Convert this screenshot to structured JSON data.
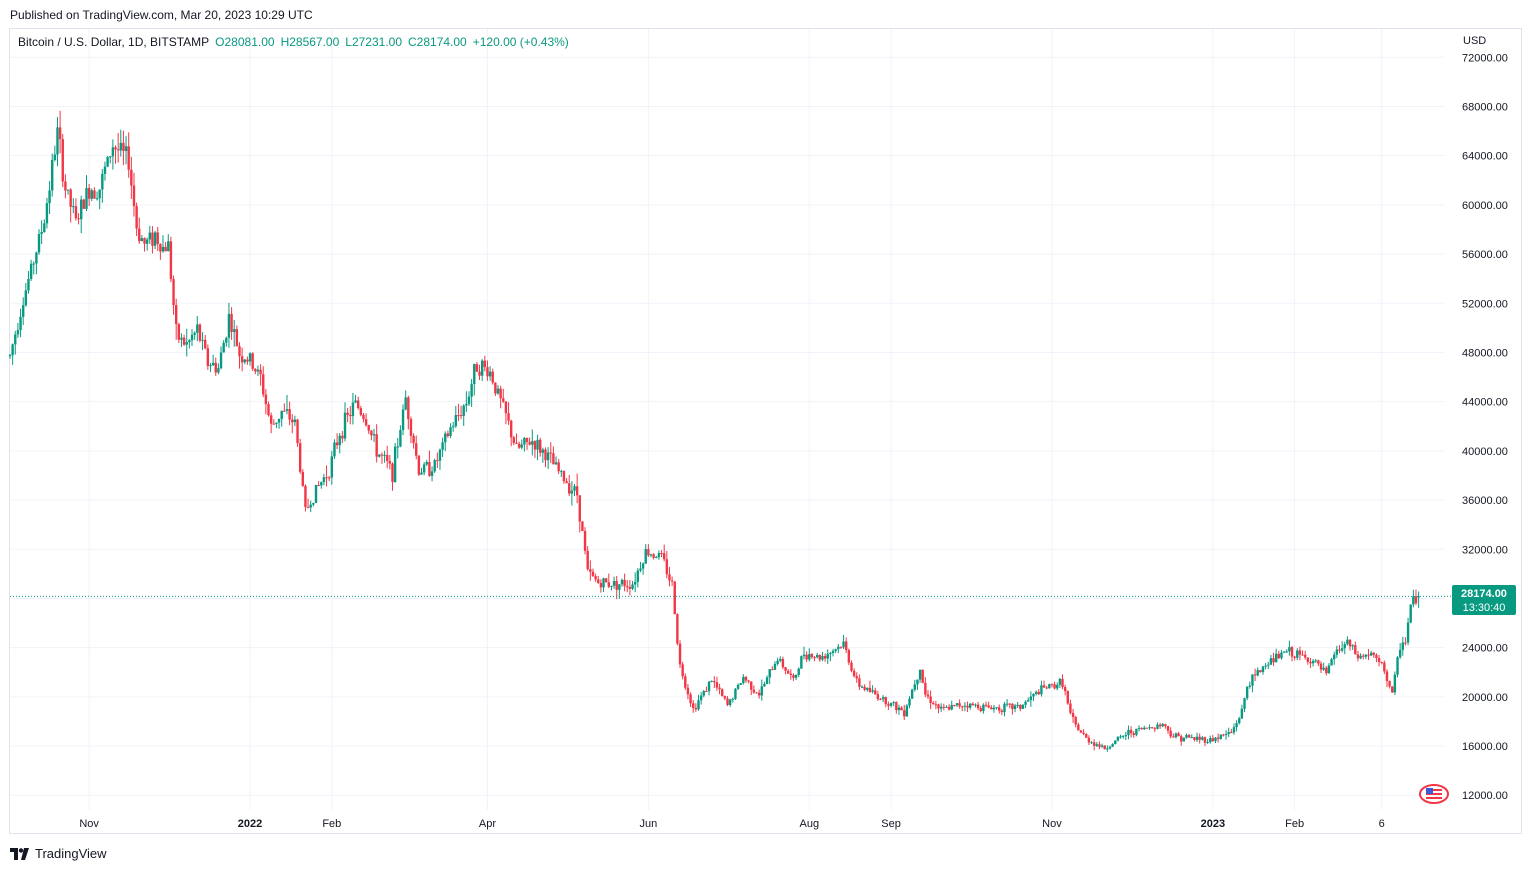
{
  "header": {
    "published": "Published on TradingView.com, Mar 20, 2023 10:29 UTC"
  },
  "legend": {
    "symbol": "Bitcoin / U.S. Dollar, 1D, BITSTAMP",
    "open": "O28081.00",
    "high": "H28567.00",
    "low": "L27231.00",
    "close": "C28174.00",
    "change": "+120.00 (+0.43%)"
  },
  "axis": {
    "currency": "USD"
  },
  "last_price": {
    "price": "28174.00",
    "countdown": "13:30:40"
  },
  "footer": {
    "brand": "TradingView"
  },
  "colors": {
    "up": "#089981",
    "down": "#f23645",
    "grid": "#f0f3fa",
    "text": "#131722"
  },
  "icons": {
    "logo": "tradingview-logo-icon",
    "badge": "flag-badge-icon"
  },
  "chart_data": {
    "type": "candlestick",
    "title": "Bitcoin / U.S. Dollar, 1D, BITSTAMP",
    "y_axis": {
      "side": "right",
      "min": 10800,
      "max": 74300,
      "ticks": [
        12000,
        16000,
        20000,
        24000,
        28000,
        32000,
        36000,
        40000,
        44000,
        48000,
        52000,
        56000,
        60000,
        64000,
        68000,
        72000
      ],
      "tick_labels": [
        "12000.00",
        "16000.00",
        "20000.00",
        "24000.00",
        "28000.00",
        "32000.00",
        "36000.00",
        "40000.00",
        "44000.00",
        "48000.00",
        "52000.00",
        "56000.00",
        "60000.00",
        "64000.00",
        "68000.00",
        "72000.00"
      ]
    },
    "x_axis": {
      "start": "2021-10-02",
      "end": "2023-03-20",
      "right_margin_days": 10,
      "ticks": [
        {
          "date": "2021-11-01",
          "label": "Nov",
          "bold": false
        },
        {
          "date": "2022-01-01",
          "label": "2022",
          "bold": true
        },
        {
          "date": "2022-02-01",
          "label": "Feb",
          "bold": false
        },
        {
          "date": "2022-04-01",
          "label": "Apr",
          "bold": false
        },
        {
          "date": "2022-06-01",
          "label": "Jun",
          "bold": false
        },
        {
          "date": "2022-08-01",
          "label": "Aug",
          "bold": false
        },
        {
          "date": "2022-09-01",
          "label": "Sep",
          "bold": false
        },
        {
          "date": "2022-11-01",
          "label": "Nov",
          "bold": false
        },
        {
          "date": "2023-01-01",
          "label": "2023",
          "bold": true
        },
        {
          "date": "2023-02-01",
          "label": "Feb",
          "bold": false
        },
        {
          "date": "2023-03-06",
          "label": "6",
          "bold": false
        }
      ]
    },
    "grid": true,
    "last_price_line": 28174,
    "closes": [
      {
        "date": "2021-10-02",
        "close": 47700
      },
      {
        "date": "2021-10-06",
        "close": 51500
      },
      {
        "date": "2021-10-10",
        "close": 54700
      },
      {
        "date": "2021-10-15",
        "close": 58800
      },
      {
        "date": "2021-10-20",
        "close": 65900
      },
      {
        "date": "2021-10-23",
        "close": 61300
      },
      {
        "date": "2021-10-27",
        "close": 58600
      },
      {
        "date": "2021-11-01",
        "close": 61300
      },
      {
        "date": "2021-11-05",
        "close": 61400
      },
      {
        "date": "2021-11-10",
        "close": 64900
      },
      {
        "date": "2021-11-13",
        "close": 64200
      },
      {
        "date": "2021-11-16",
        "close": 63600
      },
      {
        "date": "2021-11-19",
        "close": 58200
      },
      {
        "date": "2021-11-22",
        "close": 56800
      },
      {
        "date": "2021-11-26",
        "close": 57600
      },
      {
        "date": "2021-11-29",
        "close": 56500
      },
      {
        "date": "2021-12-01",
        "close": 56800
      },
      {
        "date": "2021-12-04",
        "close": 49400
      },
      {
        "date": "2021-12-08",
        "close": 48600
      },
      {
        "date": "2021-12-12",
        "close": 49800
      },
      {
        "date": "2021-12-16",
        "close": 47200
      },
      {
        "date": "2021-12-20",
        "close": 46700
      },
      {
        "date": "2021-12-24",
        "close": 50900
      },
      {
        "date": "2021-12-28",
        "close": 47900
      },
      {
        "date": "2022-01-01",
        "close": 47300
      },
      {
        "date": "2022-01-05",
        "close": 45900
      },
      {
        "date": "2022-01-09",
        "close": 41900
      },
      {
        "date": "2022-01-13",
        "close": 43200
      },
      {
        "date": "2022-01-18",
        "close": 42300
      },
      {
        "date": "2022-01-22",
        "close": 35100
      },
      {
        "date": "2022-01-26",
        "close": 36800
      },
      {
        "date": "2022-01-31",
        "close": 38500
      },
      {
        "date": "2022-02-04",
        "close": 41500
      },
      {
        "date": "2022-02-10",
        "close": 43900
      },
      {
        "date": "2022-02-14",
        "close": 42500
      },
      {
        "date": "2022-02-18",
        "close": 40000
      },
      {
        "date": "2022-02-24",
        "close": 38300
      },
      {
        "date": "2022-03-01",
        "close": 44300
      },
      {
        "date": "2022-03-06",
        "close": 38400
      },
      {
        "date": "2022-03-12",
        "close": 38800
      },
      {
        "date": "2022-03-18",
        "close": 41800
      },
      {
        "date": "2022-03-24",
        "close": 44000
      },
      {
        "date": "2022-03-28",
        "close": 47100
      },
      {
        "date": "2022-04-02",
        "close": 46400
      },
      {
        "date": "2022-04-08",
        "close": 42800
      },
      {
        "date": "2022-04-12",
        "close": 40100
      },
      {
        "date": "2022-04-18",
        "close": 40800
      },
      {
        "date": "2022-04-24",
        "close": 39500
      },
      {
        "date": "2022-04-30",
        "close": 37700
      },
      {
        "date": "2022-05-05",
        "close": 36500
      },
      {
        "date": "2022-05-09",
        "close": 30100
      },
      {
        "date": "2022-05-13",
        "close": 29300
      },
      {
        "date": "2022-05-20",
        "close": 29200
      },
      {
        "date": "2022-05-26",
        "close": 29200
      },
      {
        "date": "2022-05-31",
        "close": 31800
      },
      {
        "date": "2022-06-06",
        "close": 31400
      },
      {
        "date": "2022-06-10",
        "close": 29100
      },
      {
        "date": "2022-06-13",
        "close": 22500
      },
      {
        "date": "2022-06-18",
        "close": 19000
      },
      {
        "date": "2022-06-25",
        "close": 21400
      },
      {
        "date": "2022-07-01",
        "close": 19300
      },
      {
        "date": "2022-07-07",
        "close": 21600
      },
      {
        "date": "2022-07-13",
        "close": 20200
      },
      {
        "date": "2022-07-20",
        "close": 23200
      },
      {
        "date": "2022-07-26",
        "close": 21300
      },
      {
        "date": "2022-07-30",
        "close": 23600
      },
      {
        "date": "2022-08-05",
        "close": 23200
      },
      {
        "date": "2022-08-14",
        "close": 24300
      },
      {
        "date": "2022-08-19",
        "close": 21100
      },
      {
        "date": "2022-08-26",
        "close": 20200
      },
      {
        "date": "2022-09-06",
        "close": 18800
      },
      {
        "date": "2022-09-12",
        "close": 22400
      },
      {
        "date": "2022-09-14",
        "close": 20200
      },
      {
        "date": "2022-09-20",
        "close": 18900
      },
      {
        "date": "2022-09-28",
        "close": 19400
      },
      {
        "date": "2022-10-10",
        "close": 19100
      },
      {
        "date": "2022-10-20",
        "close": 19200
      },
      {
        "date": "2022-10-28",
        "close": 20600
      },
      {
        "date": "2022-11-05",
        "close": 21200
      },
      {
        "date": "2022-11-08",
        "close": 18500
      },
      {
        "date": "2022-11-10",
        "close": 17600
      },
      {
        "date": "2022-11-14",
        "close": 16600
      },
      {
        "date": "2022-11-21",
        "close": 15800
      },
      {
        "date": "2022-11-30",
        "close": 17100
      },
      {
        "date": "2022-12-13",
        "close": 17800
      },
      {
        "date": "2022-12-17",
        "close": 16800
      },
      {
        "date": "2022-12-31",
        "close": 16500
      },
      {
        "date": "2023-01-08",
        "close": 17100
      },
      {
        "date": "2023-01-12",
        "close": 18800
      },
      {
        "date": "2023-01-14",
        "close": 20900
      },
      {
        "date": "2023-01-21",
        "close": 22700
      },
      {
        "date": "2023-01-29",
        "close": 23700
      },
      {
        "date": "2023-02-02",
        "close": 23400
      },
      {
        "date": "2023-02-08",
        "close": 22900
      },
      {
        "date": "2023-02-13",
        "close": 21800
      },
      {
        "date": "2023-02-16",
        "close": 23500
      },
      {
        "date": "2023-02-21",
        "close": 24400
      },
      {
        "date": "2023-02-25",
        "close": 23200
      },
      {
        "date": "2023-03-02",
        "close": 23500
      },
      {
        "date": "2023-03-07",
        "close": 22200
      },
      {
        "date": "2023-03-10",
        "close": 20200
      },
      {
        "date": "2023-03-13",
        "close": 24200
      },
      {
        "date": "2023-03-15",
        "close": 24600
      },
      {
        "date": "2023-03-17",
        "close": 27400
      },
      {
        "date": "2023-03-19",
        "close": 28054
      },
      {
        "date": "2023-03-20",
        "close": 28174
      }
    ],
    "last_candle": {
      "date": "2023-03-20",
      "open": 28081,
      "high": 28567,
      "low": 27231,
      "close": 28174
    }
  }
}
